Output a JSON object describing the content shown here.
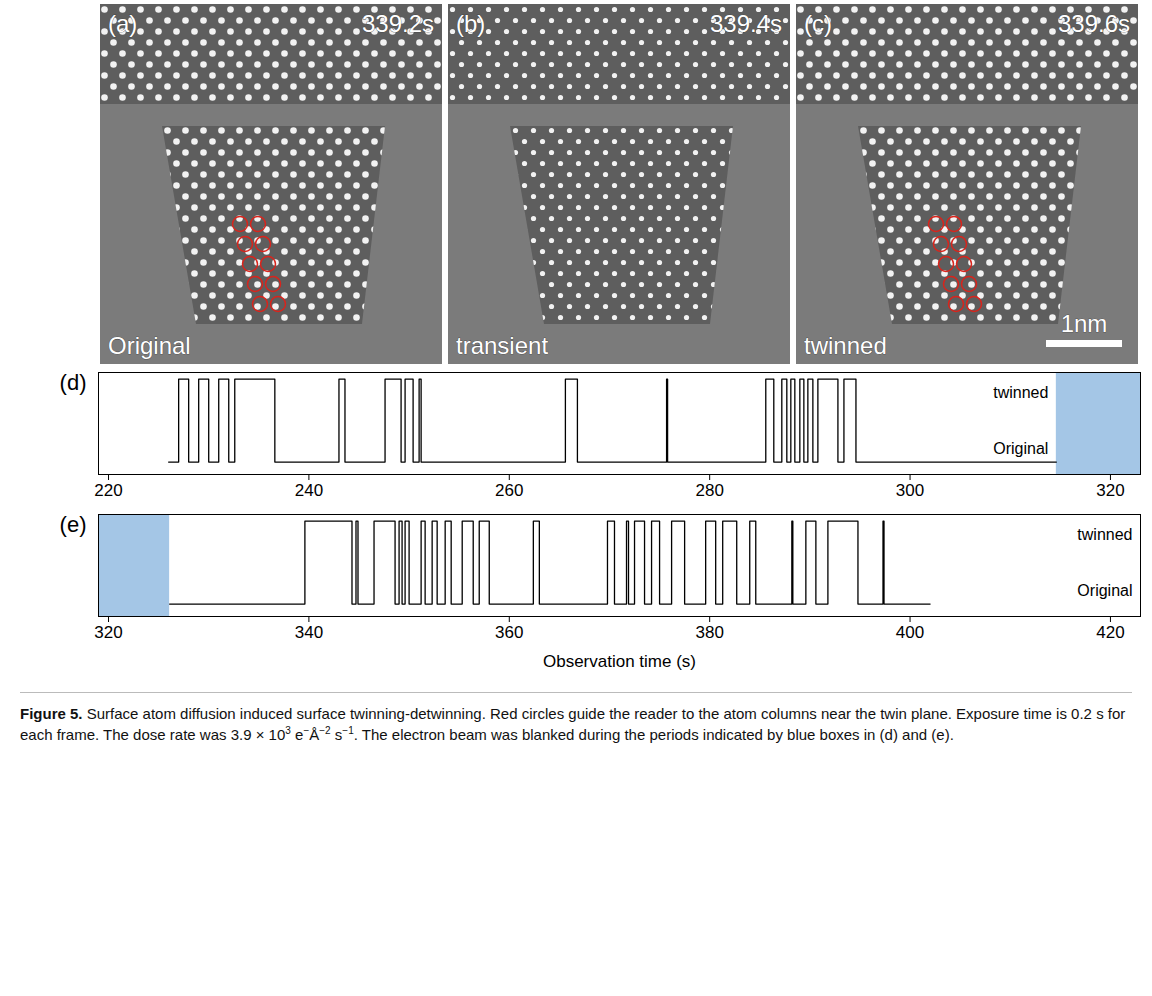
{
  "images": [
    {
      "letter": "(a)",
      "time": "339.2s",
      "state": "Original"
    },
    {
      "letter": "(b)",
      "time": "339.4s",
      "state": "transient"
    },
    {
      "letter": "(c)",
      "time": "339.6s",
      "state": "twinned"
    }
  ],
  "scale_bar": {
    "label": "1nm",
    "panel": "(c)"
  },
  "chart_data": [
    {
      "type": "line",
      "panel": "(d)",
      "line_style": "step",
      "color": "#000000",
      "x": [
        226,
        227,
        228,
        229,
        230,
        231,
        232,
        232.6,
        236.6,
        243,
        243.6,
        247.6,
        249.2,
        249.6,
        250.4,
        251,
        251.2,
        265.6,
        266.8,
        275.7,
        275.8,
        285.6,
        286.4,
        287.2,
        287.7,
        288.1,
        288.5,
        289,
        289.4,
        289.8,
        290.3,
        290.8,
        292.8,
        293.4,
        294.6,
        314.6
      ],
      "values": [
        0,
        1,
        0,
        1,
        0,
        1,
        0,
        1,
        0,
        1,
        0,
        1,
        0,
        1,
        0,
        1,
        0,
        1,
        0,
        1,
        0,
        1,
        0,
        1,
        0,
        1,
        0,
        1,
        0,
        1,
        0,
        1,
        0,
        1,
        0,
        0
      ],
      "xlim": [
        219,
        323
      ],
      "xticks": [
        220,
        240,
        260,
        280,
        300,
        320
      ],
      "ylim": [
        -0.15,
        1.08
      ],
      "yticks": [
        {
          "value": 0,
          "label": "Original"
        },
        {
          "value": 1,
          "label": "twinned"
        }
      ],
      "beam_blanked": {
        "color": "#a4c6e6",
        "ranges": [
          [
            314.6,
            323
          ]
        ]
      }
    },
    {
      "type": "line",
      "panel": "(e)",
      "line_style": "step",
      "color": "#000000",
      "x": [
        326.1,
        339.6,
        344.3,
        344.7,
        344.9,
        346.5,
        348.6,
        349,
        349.3,
        349.6,
        350,
        351.2,
        351.6,
        352.3,
        352.8,
        353.6,
        354.2,
        355.3,
        356.4,
        357,
        358,
        362.4,
        363,
        369.8,
        370.5,
        371.7,
        371.9,
        372.5,
        373.5,
        374.2,
        375,
        376.2,
        377.5,
        379.6,
        380.6,
        381.3,
        382.7,
        384,
        384.6,
        388.2,
        388.3,
        389.6,
        390.6,
        391.8,
        394.8,
        397.3,
        397.4,
        402
      ],
      "values": [
        0,
        1,
        0,
        1,
        0,
        1,
        0,
        1,
        0,
        1,
        0,
        1,
        0,
        1,
        0,
        1,
        0,
        1,
        0,
        1,
        0,
        1,
        0,
        1,
        0,
        1,
        0,
        1,
        0,
        1,
        0,
        1,
        0,
        1,
        0,
        1,
        0,
        1,
        0,
        1,
        0,
        1,
        0,
        1,
        0,
        1,
        0,
        0
      ],
      "xlim": [
        319,
        423
      ],
      "xticks": [
        320,
        340,
        360,
        380,
        400,
        420
      ],
      "ylim": [
        -0.15,
        1.08
      ],
      "yticks": [
        {
          "value": 0,
          "label": "Original"
        },
        {
          "value": 1,
          "label": "twinned"
        }
      ],
      "xlabel": "Observation time (s)",
      "beam_blanked": {
        "color": "#a4c6e6",
        "ranges": [
          [
            319,
            326.1
          ]
        ]
      }
    }
  ],
  "caption": [
    {
      "text": "Figure 5.",
      "bold": true
    },
    {
      "text": " Surface atom diffusion induced surface twinning-detwinning. Red circles guide the reader to the atom columns near the twin plane. Exposure time is 0.2 s for each frame. The dose rate was 3.9 × 10"
    },
    {
      "text": "3",
      "sup": true
    },
    {
      "text": " e"
    },
    {
      "text": "−",
      "sup": true
    },
    {
      "text": "Å"
    },
    {
      "text": "−2",
      "sup": true
    },
    {
      "text": " s"
    },
    {
      "text": "−1",
      "sup": true
    },
    {
      "text": ". The electron beam was blanked during the periods indicated by blue boxes in (d) and (e)."
    }
  ]
}
